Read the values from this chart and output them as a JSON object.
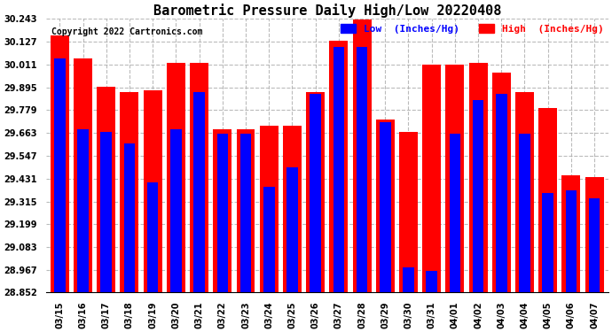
{
  "title": "Barometric Pressure Daily High/Low 20220408",
  "copyright": "Copyright 2022 Cartronics.com",
  "legend_low": "Low  (Inches/Hg)",
  "legend_high": "High  (Inches/Hg)",
  "dates": [
    "03/15",
    "03/16",
    "03/17",
    "03/18",
    "03/19",
    "03/20",
    "03/21",
    "03/22",
    "03/23",
    "03/24",
    "03/25",
    "03/26",
    "03/27",
    "03/28",
    "03/29",
    "03/30",
    "03/31",
    "04/01",
    "04/02",
    "04/03",
    "04/04",
    "04/05",
    "04/06",
    "04/07"
  ],
  "high_values": [
    30.16,
    30.04,
    29.9,
    29.87,
    29.88,
    30.02,
    30.02,
    29.68,
    29.68,
    29.7,
    29.7,
    29.87,
    30.13,
    30.24,
    29.73,
    29.67,
    30.01,
    30.01,
    30.02,
    29.97,
    29.87,
    29.79,
    29.45,
    29.44
  ],
  "low_values": [
    30.04,
    29.68,
    29.67,
    29.61,
    29.41,
    29.68,
    29.87,
    29.66,
    29.66,
    29.39,
    29.49,
    29.86,
    30.1,
    30.1,
    29.72,
    28.98,
    28.96,
    29.66,
    29.83,
    29.86,
    29.66,
    29.36,
    29.37,
    29.33
  ],
  "ylim_min": 28.852,
  "ylim_max": 30.243,
  "yticks": [
    28.852,
    28.967,
    29.083,
    29.199,
    29.315,
    29.431,
    29.547,
    29.663,
    29.779,
    29.895,
    30.011,
    30.127,
    30.243
  ],
  "bar_color_high": "#ff0000",
  "bar_color_low": "#0000ff",
  "bg_color": "#ffffff",
  "title_fontsize": 11,
  "copyright_fontsize": 7,
  "legend_fontsize": 8,
  "tick_fontsize": 7,
  "grid_color": "#aaaaaa",
  "grid_style": "--",
  "grid_alpha": 0.8
}
